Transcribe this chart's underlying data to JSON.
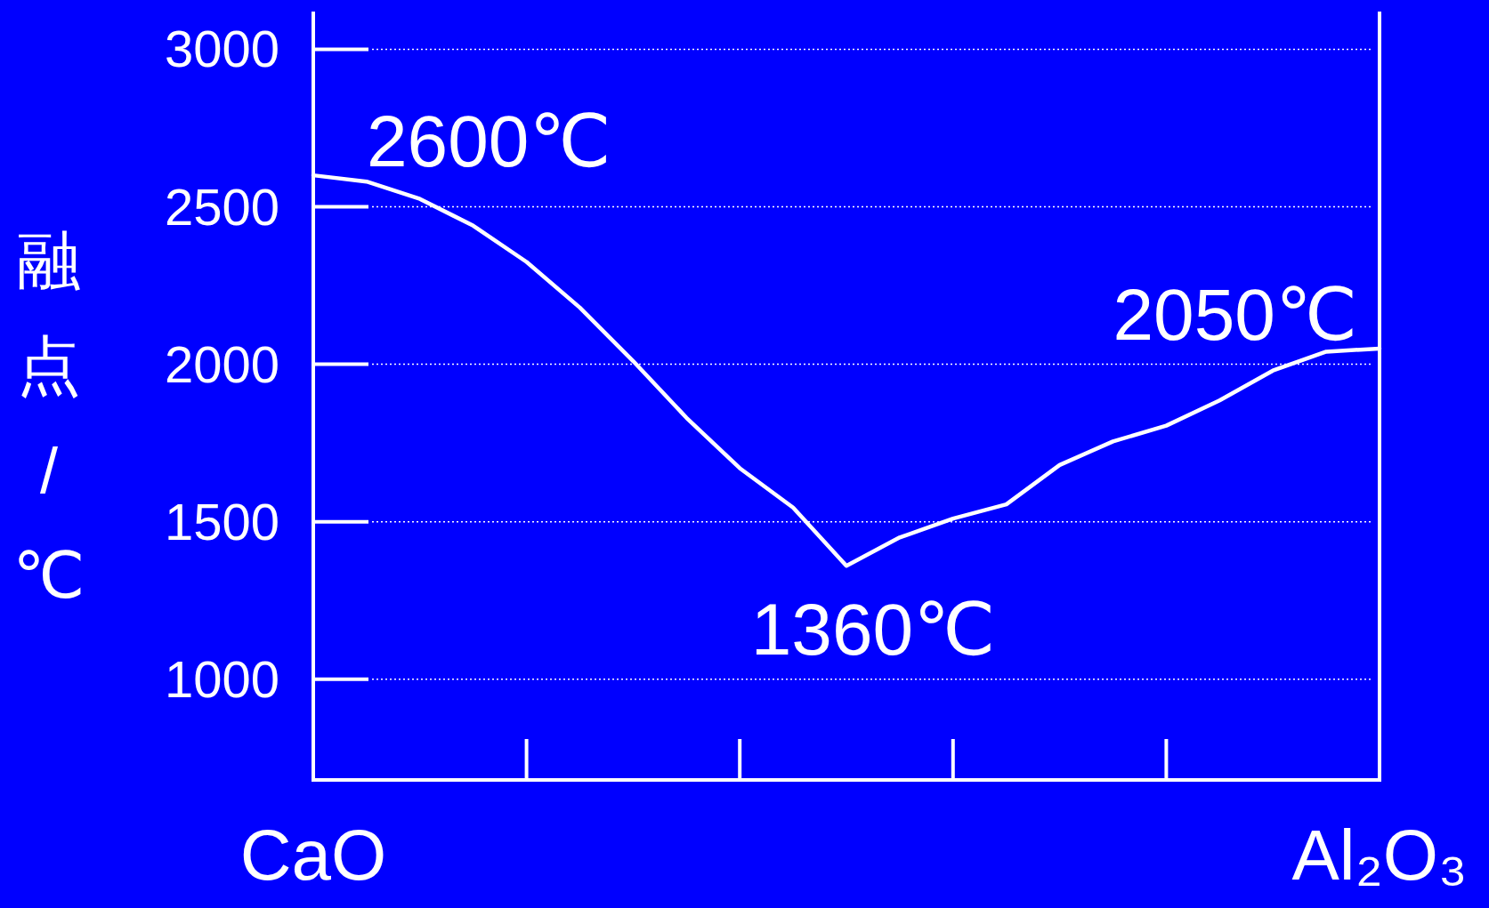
{
  "chart_data": {
    "type": "line",
    "ylabel": "融点/℃",
    "categories": [
      "CaO",
      null,
      null,
      null,
      null,
      null,
      null,
      null,
      null,
      null,
      null,
      null,
      null,
      null,
      null,
      null,
      null,
      null,
      null,
      null,
      "Al₂O₃"
    ],
    "series": [
      {
        "color": "#ffffff",
        "values": [
          2600,
          2580,
          2525,
          2440,
          2325,
          2180,
          2010,
          1830,
          1670,
          1545,
          1360,
          1450,
          1510,
          1555,
          1680,
          1755,
          1805,
          1885,
          1980,
          2040,
          2050
        ]
      }
    ],
    "ylim": [
      680,
      3120
    ],
    "yticks": [
      1000,
      1500,
      2000,
      2500,
      3000
    ],
    "grid": "y",
    "line_style": "solid",
    "marker": "none",
    "annotations": [
      {
        "text": "2600℃",
        "x": "CaO",
        "y": 2600
      },
      "1360℃",
      {
        "text": "2050℃",
        "x": "Al₂O₃",
        "y": 2050
      }
    ]
  }
}
